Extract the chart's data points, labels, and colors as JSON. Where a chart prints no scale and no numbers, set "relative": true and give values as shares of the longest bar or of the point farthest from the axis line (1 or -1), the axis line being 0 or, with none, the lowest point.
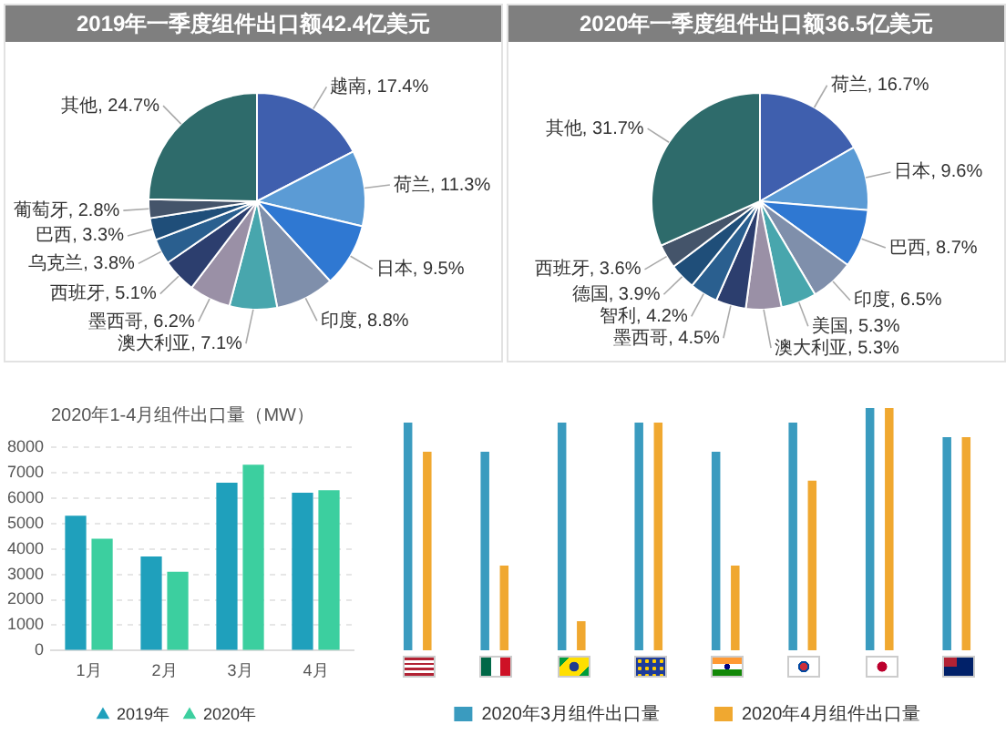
{
  "chart_data": [
    {
      "type": "pie",
      "title": "2019年一季度组件出口额42.4亿美元",
      "categories": [
        "越南",
        "荷兰",
        "日本",
        "印度",
        "澳大利亚",
        "墨西哥",
        "西班牙",
        "乌克兰",
        "巴西",
        "葡萄牙",
        "其他"
      ],
      "values": [
        17.4,
        11.3,
        9.5,
        8.8,
        7.1,
        6.2,
        5.1,
        3.8,
        3.3,
        2.8,
        24.7
      ],
      "value_labels": [
        "17.4%",
        "11.3%",
        "9.5%",
        "8.8%",
        "7.1%",
        "6.2%",
        "5.1%",
        "3.8%",
        "3.3%",
        "2.8%",
        "24.7%"
      ],
      "colors": [
        "#3f5fae",
        "#5b9bd5",
        "#2f78d2",
        "#7f8fab",
        "#48a6ad",
        "#9a90a6",
        "#2c3e6e",
        "#2a5f8f",
        "#1f4e79",
        "#44546a",
        "#2e6b6b"
      ]
    },
    {
      "type": "pie",
      "title": "2020年一季度组件出口额36.5亿美元",
      "categories": [
        "荷兰",
        "日本",
        "巴西",
        "印度",
        "美国",
        "澳大利亚",
        "墨西哥",
        "智利",
        "德国",
        "西班牙",
        "其他"
      ],
      "values": [
        16.7,
        9.6,
        8.7,
        6.5,
        5.3,
        5.3,
        4.5,
        4.2,
        3.9,
        3.6,
        31.7
      ],
      "value_labels": [
        "16.7%",
        "9.6%",
        "8.7%",
        "6.5%",
        "5.3%",
        "5.3%",
        "4.5%",
        "4.2%",
        "3.9%",
        "3.6%",
        "31.7%"
      ],
      "colors": [
        "#3f5fae",
        "#5b9bd5",
        "#2f78d2",
        "#7f8fab",
        "#48a6ad",
        "#9a90a6",
        "#2c3e6e",
        "#2a5f8f",
        "#1f4e79",
        "#44546a",
        "#2e6b6b"
      ]
    },
    {
      "type": "bar",
      "title": "2020年1-4月组件出口量（MW）",
      "categories": [
        "1月",
        "2月",
        "3月",
        "4月"
      ],
      "series": [
        {
          "name": "2019年",
          "color": "#1fa0bc",
          "values": [
            5300,
            3700,
            6600,
            6200
          ]
        },
        {
          "name": "2020年",
          "color": "#3ccf9f",
          "values": [
            4400,
            3100,
            7300,
            6300
          ]
        }
      ],
      "ylim": [
        0,
        8000
      ],
      "yticks": [
        0,
        1000,
        2000,
        3000,
        4000,
        5000,
        6000,
        7000,
        8000
      ],
      "grid": "y",
      "legend": "bottom",
      "marker": "triangle"
    },
    {
      "type": "bar",
      "relative": true,
      "categories": [
        null,
        null,
        null,
        null,
        null,
        null,
        null,
        null
      ],
      "series": [
        {
          "name": "2020年3月组件出口量",
          "color": "#3a9bbf",
          "values": [
            0.94,
            0.82,
            0.94,
            0.94,
            0.82,
            0.94,
            1,
            0.88
          ]
        },
        {
          "name": "2020年4月组件出口量",
          "color": "#f0a830",
          "values": [
            0.82,
            0.35,
            0.12,
            0.94,
            0.35,
            0.7,
            1,
            0.88
          ]
        }
      ],
      "legend": "bottom"
    }
  ]
}
